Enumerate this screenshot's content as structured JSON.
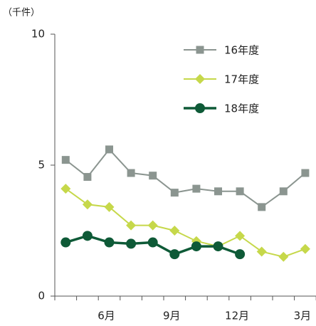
{
  "chart_data": {
    "type": "line",
    "unit_label": "（千件）",
    "categories": [
      null,
      null,
      "6月",
      null,
      null,
      "9月",
      null,
      null,
      "12月",
      null,
      null,
      "3月"
    ],
    "series": [
      {
        "name": "16年度",
        "color": "#8b9590",
        "marker": "square",
        "values": [
          5.2,
          4.55,
          5.6,
          4.7,
          4.6,
          3.95,
          4.1,
          4.0,
          4.0,
          3.4,
          4.0,
          4.7
        ]
      },
      {
        "name": "17年度",
        "color": "#c6d84a",
        "marker": "diamond",
        "values": [
          4.1,
          3.5,
          3.4,
          2.7,
          2.7,
          2.5,
          2.1,
          1.9,
          2.3,
          1.7,
          1.5,
          1.8
        ]
      },
      {
        "name": "18年度",
        "color": "#0e5a37",
        "marker": "circle",
        "values": [
          2.05,
          2.3,
          2.05,
          2.0,
          2.05,
          1.6,
          1.9,
          1.9,
          1.6,
          null,
          null,
          null
        ]
      }
    ],
    "ylim": [
      0,
      10
    ],
    "yticks": [
      0,
      5,
      10
    ],
    "grid": false,
    "legend": "top-right"
  }
}
